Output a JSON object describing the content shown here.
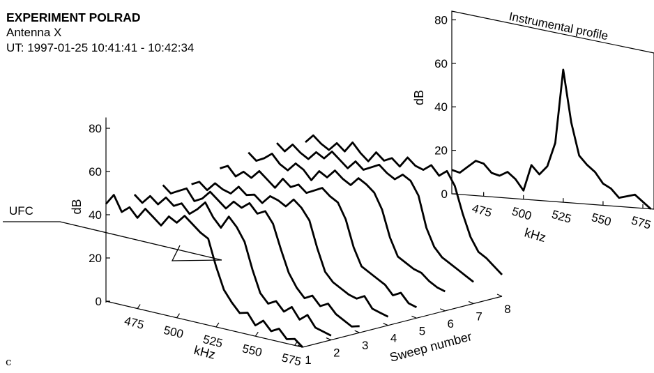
{
  "header": {
    "title": "EXPERIMENT POLRAD",
    "antenna": "Antenna X",
    "time": "UT: 1997-01-25 10:41:41 - 10:42:34"
  },
  "panel_label": "c",
  "chart_data": [
    {
      "type": "line",
      "view": "3d-waterfall",
      "zlabel": "dB",
      "zlim": [
        0,
        80
      ],
      "zticks": [
        0,
        20,
        40,
        60,
        80
      ],
      "xlabel": "kHz",
      "xticks": [
        475,
        500,
        525,
        550,
        575
      ],
      "xlim": [
        455,
        580
      ],
      "ylabel": "Sweep number",
      "yticks": [
        1,
        2,
        3,
        4,
        5,
        6,
        7,
        8
      ],
      "annotation": "UFC",
      "series": [
        {
          "sweep": 1,
          "x": [
            455,
            460,
            465,
            470,
            475,
            480,
            485,
            490,
            495,
            500,
            505,
            510,
            515,
            520,
            525,
            530,
            535,
            540,
            545,
            550,
            555,
            560,
            565,
            570,
            575,
            580
          ],
          "values": [
            45,
            50,
            43,
            46,
            42,
            47,
            44,
            41,
            46,
            44,
            48,
            45,
            42,
            40,
            28,
            18,
            13,
            9,
            10,
            5,
            8,
            4,
            6,
            2,
            3,
            0
          ]
        },
        {
          "sweep": 2,
          "x": [
            455,
            460,
            465,
            470,
            475,
            480,
            485,
            490,
            495,
            500,
            505,
            510,
            515,
            520,
            525,
            530,
            535,
            540,
            545,
            550,
            555,
            560,
            565,
            570,
            575,
            580
          ],
          "values": [
            46,
            43,
            47,
            44,
            48,
            45,
            47,
            43,
            46,
            50,
            44,
            40,
            46,
            42,
            36,
            24,
            14,
            10,
            12,
            8,
            11,
            6,
            9,
            4,
            3,
            2
          ]
        },
        {
          "sweep": 3,
          "x": [
            455,
            460,
            465,
            470,
            475,
            480,
            485,
            490,
            495,
            500,
            505,
            510,
            515,
            520,
            525,
            530,
            535,
            540,
            545,
            550,
            555,
            560,
            565,
            570,
            575,
            580
          ],
          "values": [
            47,
            44,
            46,
            48,
            43,
            45,
            49,
            46,
            43,
            47,
            45,
            48,
            44,
            46,
            41,
            30,
            20,
            14,
            10,
            12,
            8,
            10,
            6,
            4,
            2,
            3
          ]
        },
        {
          "sweep": 4,
          "x": [
            455,
            460,
            465,
            470,
            475,
            480,
            485,
            490,
            495,
            500,
            505,
            510,
            515,
            520,
            525,
            530,
            535,
            540,
            545,
            550,
            555,
            560,
            565,
            570,
            575,
            580
          ],
          "values": [
            44,
            46,
            43,
            47,
            45,
            44,
            48,
            45,
            46,
            43,
            47,
            46,
            44,
            48,
            45,
            40,
            28,
            18,
            14,
            12,
            10,
            9,
            11,
            6,
            5,
            4
          ]
        },
        {
          "sweep": 5,
          "x": [
            455,
            460,
            465,
            470,
            475,
            480,
            485,
            490,
            495,
            500,
            505,
            510,
            515,
            520,
            525,
            530,
            535,
            540,
            545,
            550,
            555,
            560,
            565,
            570,
            575,
            580
          ],
          "values": [
            48,
            50,
            46,
            49,
            47,
            51,
            48,
            45,
            50,
            47,
            49,
            46,
            48,
            50,
            47,
            45,
            38,
            26,
            18,
            16,
            14,
            12,
            8,
            10,
            6,
            5
          ]
        },
        {
          "sweep": 6,
          "x": [
            455,
            460,
            465,
            470,
            475,
            480,
            485,
            490,
            495,
            500,
            505,
            510,
            515,
            520,
            525,
            530,
            535,
            540,
            545,
            550,
            555,
            560,
            565,
            570,
            575,
            580
          ],
          "values": [
            52,
            49,
            51,
            54,
            50,
            48,
            52,
            50,
            46,
            51,
            49,
            53,
            50,
            48,
            52,
            50,
            47,
            40,
            28,
            20,
            18,
            16,
            15,
            12,
            10,
            9
          ]
        },
        {
          "sweep": 7,
          "x": [
            455,
            460,
            465,
            470,
            475,
            480,
            485,
            490,
            495,
            500,
            505,
            510,
            515,
            520,
            525,
            530,
            535,
            540,
            545,
            550,
            555,
            560,
            565,
            570,
            575,
            580
          ],
          "values": [
            53,
            50,
            54,
            51,
            49,
            53,
            51,
            55,
            52,
            49,
            53,
            50,
            52,
            54,
            51,
            49,
            52,
            50,
            44,
            30,
            22,
            18,
            16,
            14,
            12,
            10
          ]
        },
        {
          "sweep": 8,
          "x": [
            455,
            460,
            465,
            470,
            475,
            480,
            485,
            490,
            495,
            500,
            505,
            510,
            515,
            520,
            525,
            530,
            535,
            540,
            545,
            550,
            555,
            560,
            565,
            570,
            575,
            580
          ],
          "values": [
            50,
            54,
            51,
            49,
            53,
            50,
            55,
            51,
            48,
            53,
            50,
            52,
            49,
            54,
            51,
            50,
            53,
            49,
            52,
            46,
            34,
            24,
            18,
            16,
            13,
            10
          ]
        }
      ]
    },
    {
      "type": "line",
      "title": "Instrumental profile",
      "ylabel": "dB",
      "ylim": [
        0,
        80
      ],
      "yticks": [
        0,
        20,
        40,
        60,
        80
      ],
      "xlabel": "kHz",
      "xticks": [
        475,
        500,
        525,
        550,
        575
      ],
      "xlim": [
        455,
        582
      ],
      "x": [
        455,
        460,
        465,
        470,
        475,
        480,
        485,
        490,
        495,
        500,
        505,
        510,
        515,
        520,
        525,
        530,
        535,
        540,
        545,
        550,
        555,
        560,
        565,
        570,
        575,
        580
      ],
      "values": [
        11,
        10,
        13,
        16,
        15,
        11,
        10,
        12,
        9,
        4,
        16,
        12,
        16,
        27,
        61,
        37,
        22,
        18,
        15,
        10,
        8,
        4,
        5,
        6,
        3,
        0
      ]
    }
  ]
}
